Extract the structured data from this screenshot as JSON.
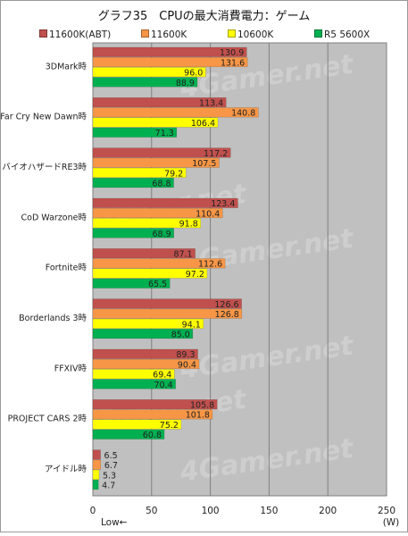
{
  "chart_data": {
    "type": "bar",
    "orientation": "horizontal",
    "title": "グラフ35　CPUの最大消費電力：ゲーム",
    "categories": [
      "3DMark時",
      "Far Cry New Dawn時",
      "バイオハザードRE3時",
      "CoD Warzone時",
      "Fortnite時",
      "Borderlands 3時",
      "FFXIV時",
      "PROJECT CARS 2時",
      "アイドル時"
    ],
    "series": [
      {
        "name": "11600K(ABT)",
        "color": "#c0504d",
        "values": [
          130.9,
          113.4,
          117.2,
          123.4,
          87.1,
          126.6,
          89.3,
          105.8,
          6.5
        ]
      },
      {
        "name": "11600K",
        "color": "#f79646",
        "values": [
          131.6,
          140.8,
          107.5,
          110.4,
          112.6,
          126.8,
          90.4,
          101.8,
          6.7
        ]
      },
      {
        "name": "10600K",
        "color": "#ffff00",
        "values": [
          96.0,
          106.4,
          79.2,
          91.8,
          97.2,
          94.1,
          69.4,
          75.2,
          5.3
        ]
      },
      {
        "name": "R5 5600X",
        "color": "#00b050",
        "values": [
          88.9,
          71.3,
          68.8,
          68.9,
          65.5,
          85.0,
          70.4,
          60.8,
          4.7
        ]
      }
    ],
    "xlim": [
      0,
      250
    ],
    "xticks": [
      0,
      50,
      100,
      150,
      200,
      250
    ],
    "xtick_labels": [
      "0",
      "50",
      "100",
      "150",
      "200",
      "250"
    ],
    "unit": "(W)",
    "direction_note": "Low←",
    "grid": true,
    "legend_position": "top",
    "watermark": "4Gamer.net",
    "plot_background": "#c0c0c0"
  }
}
